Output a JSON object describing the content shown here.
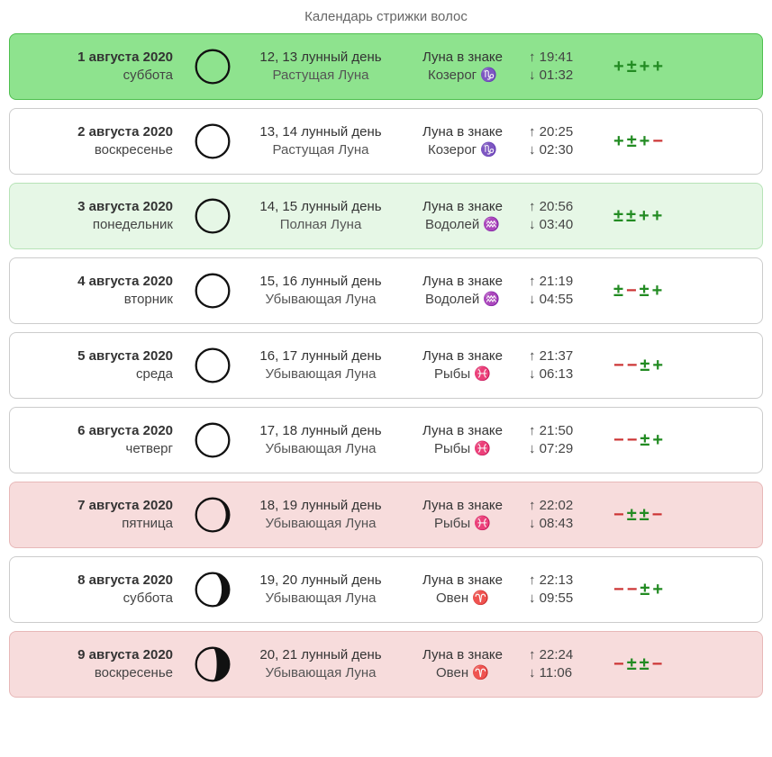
{
  "title": "Календарь стрижки волос",
  "colors": {
    "bg_green_strong": "#8ee38e",
    "bg_green_light": "#e6f7e6",
    "bg_pink": "#f7dcdc",
    "bg_white": "#ffffff",
    "border_green": "#4fbf4f",
    "border_light_green": "#b7e3b7",
    "border_pink": "#e7b8b8",
    "border_gray": "#cccccc",
    "plus_color": "#228b22",
    "minus_color": "#cc3333"
  },
  "rows": [
    {
      "date": "1 августа 2020",
      "weekday": "суббота",
      "moon_type": "full_outline",
      "lunar_day": "12, 13 лунный день",
      "phase": "Растущая Луна",
      "sign_label": "Луна в знаке",
      "sign": "Козерог ♑",
      "rise": "↑ 19:41",
      "set": "↓ 01:32",
      "rating": [
        "+",
        "±",
        "+",
        "+"
      ],
      "rating_colors": [
        "g",
        "g",
        "g",
        "g"
      ],
      "bg": "bg_green_strong",
      "border": "border_green"
    },
    {
      "date": "2 августа 2020",
      "weekday": "воскресенье",
      "moon_type": "full_outline",
      "lunar_day": "13, 14 лунный день",
      "phase": "Растущая Луна",
      "sign_label": "Луна в знаке",
      "sign": "Козерог ♑",
      "rise": "↑ 20:25",
      "set": "↓ 02:30",
      "rating": [
        "+",
        "±",
        "+",
        "−"
      ],
      "rating_colors": [
        "g",
        "g",
        "g",
        "r"
      ],
      "bg": "bg_white",
      "border": "border_gray"
    },
    {
      "date": "3 августа 2020",
      "weekday": "понедельник",
      "moon_type": "full_outline",
      "lunar_day": "14, 15 лунный день",
      "phase": "Полная Луна",
      "sign_label": "Луна в знаке",
      "sign": "Водолей ♒",
      "rise": "↑ 20:56",
      "set": "↓ 03:40",
      "rating": [
        "±",
        "±",
        "+",
        "+"
      ],
      "rating_colors": [
        "g",
        "g",
        "g",
        "g"
      ],
      "bg": "bg_green_light",
      "border": "border_light_green"
    },
    {
      "date": "4 августа 2020",
      "weekday": "вторник",
      "moon_type": "full_outline",
      "lunar_day": "15, 16 лунный день",
      "phase": "Убывающая Луна",
      "sign_label": "Луна в знаке",
      "sign": "Водолей ♒",
      "rise": "↑ 21:19",
      "set": "↓ 04:55",
      "rating": [
        "±",
        "−",
        "±",
        "+"
      ],
      "rating_colors": [
        "g",
        "r",
        "g",
        "g"
      ],
      "bg": "bg_white",
      "border": "border_gray"
    },
    {
      "date": "5 августа 2020",
      "weekday": "среда",
      "moon_type": "full_outline",
      "lunar_day": "16, 17 лунный день",
      "phase": "Убывающая Луна",
      "sign_label": "Луна в знаке",
      "sign": "Рыбы ♓",
      "rise": "↑ 21:37",
      "set": "↓ 06:13",
      "rating": [
        "−",
        "−",
        "±",
        "+"
      ],
      "rating_colors": [
        "r",
        "r",
        "g",
        "g"
      ],
      "bg": "bg_white",
      "border": "border_gray"
    },
    {
      "date": "6 августа 2020",
      "weekday": "четверг",
      "moon_type": "full_outline",
      "lunar_day": "17, 18 лунный день",
      "phase": "Убывающая Луна",
      "sign_label": "Луна в знаке",
      "sign": "Рыбы ♓",
      "rise": "↑ 21:50",
      "set": "↓ 07:29",
      "rating": [
        "−",
        "−",
        "±",
        "+"
      ],
      "rating_colors": [
        "r",
        "r",
        "g",
        "g"
      ],
      "bg": "bg_white",
      "border": "border_gray"
    },
    {
      "date": "7 августа 2020",
      "weekday": "пятница",
      "moon_type": "waning_thin",
      "lunar_day": "18, 19 лунный день",
      "phase": "Убывающая Луна",
      "sign_label": "Луна в знаке",
      "sign": "Рыбы ♓",
      "rise": "↑ 22:02",
      "set": "↓ 08:43",
      "rating": [
        "−",
        "±",
        "±",
        "−"
      ],
      "rating_colors": [
        "r",
        "g",
        "g",
        "r"
      ],
      "bg": "bg_pink",
      "border": "border_pink"
    },
    {
      "date": "8 августа 2020",
      "weekday": "суббота",
      "moon_type": "waning_mid",
      "lunar_day": "19, 20 лунный день",
      "phase": "Убывающая Луна",
      "sign_label": "Луна в знаке",
      "sign": "Овен ♈",
      "rise": "↑ 22:13",
      "set": "↓ 09:55",
      "rating": [
        "−",
        "−",
        "±",
        "+"
      ],
      "rating_colors": [
        "r",
        "r",
        "g",
        "g"
      ],
      "bg": "bg_white",
      "border": "border_gray"
    },
    {
      "date": "9 августа 2020",
      "weekday": "воскресенье",
      "moon_type": "waning_thick",
      "lunar_day": "20, 21 лунный день",
      "phase": "Убывающая Луна",
      "sign_label": "Луна в знаке",
      "sign": "Овен ♈",
      "rise": "↑ 22:24",
      "set": "↓ 11:06",
      "rating": [
        "−",
        "±",
        "±",
        "−"
      ],
      "rating_colors": [
        "r",
        "g",
        "g",
        "r"
      ],
      "bg": "bg_pink",
      "border": "border_pink"
    }
  ]
}
